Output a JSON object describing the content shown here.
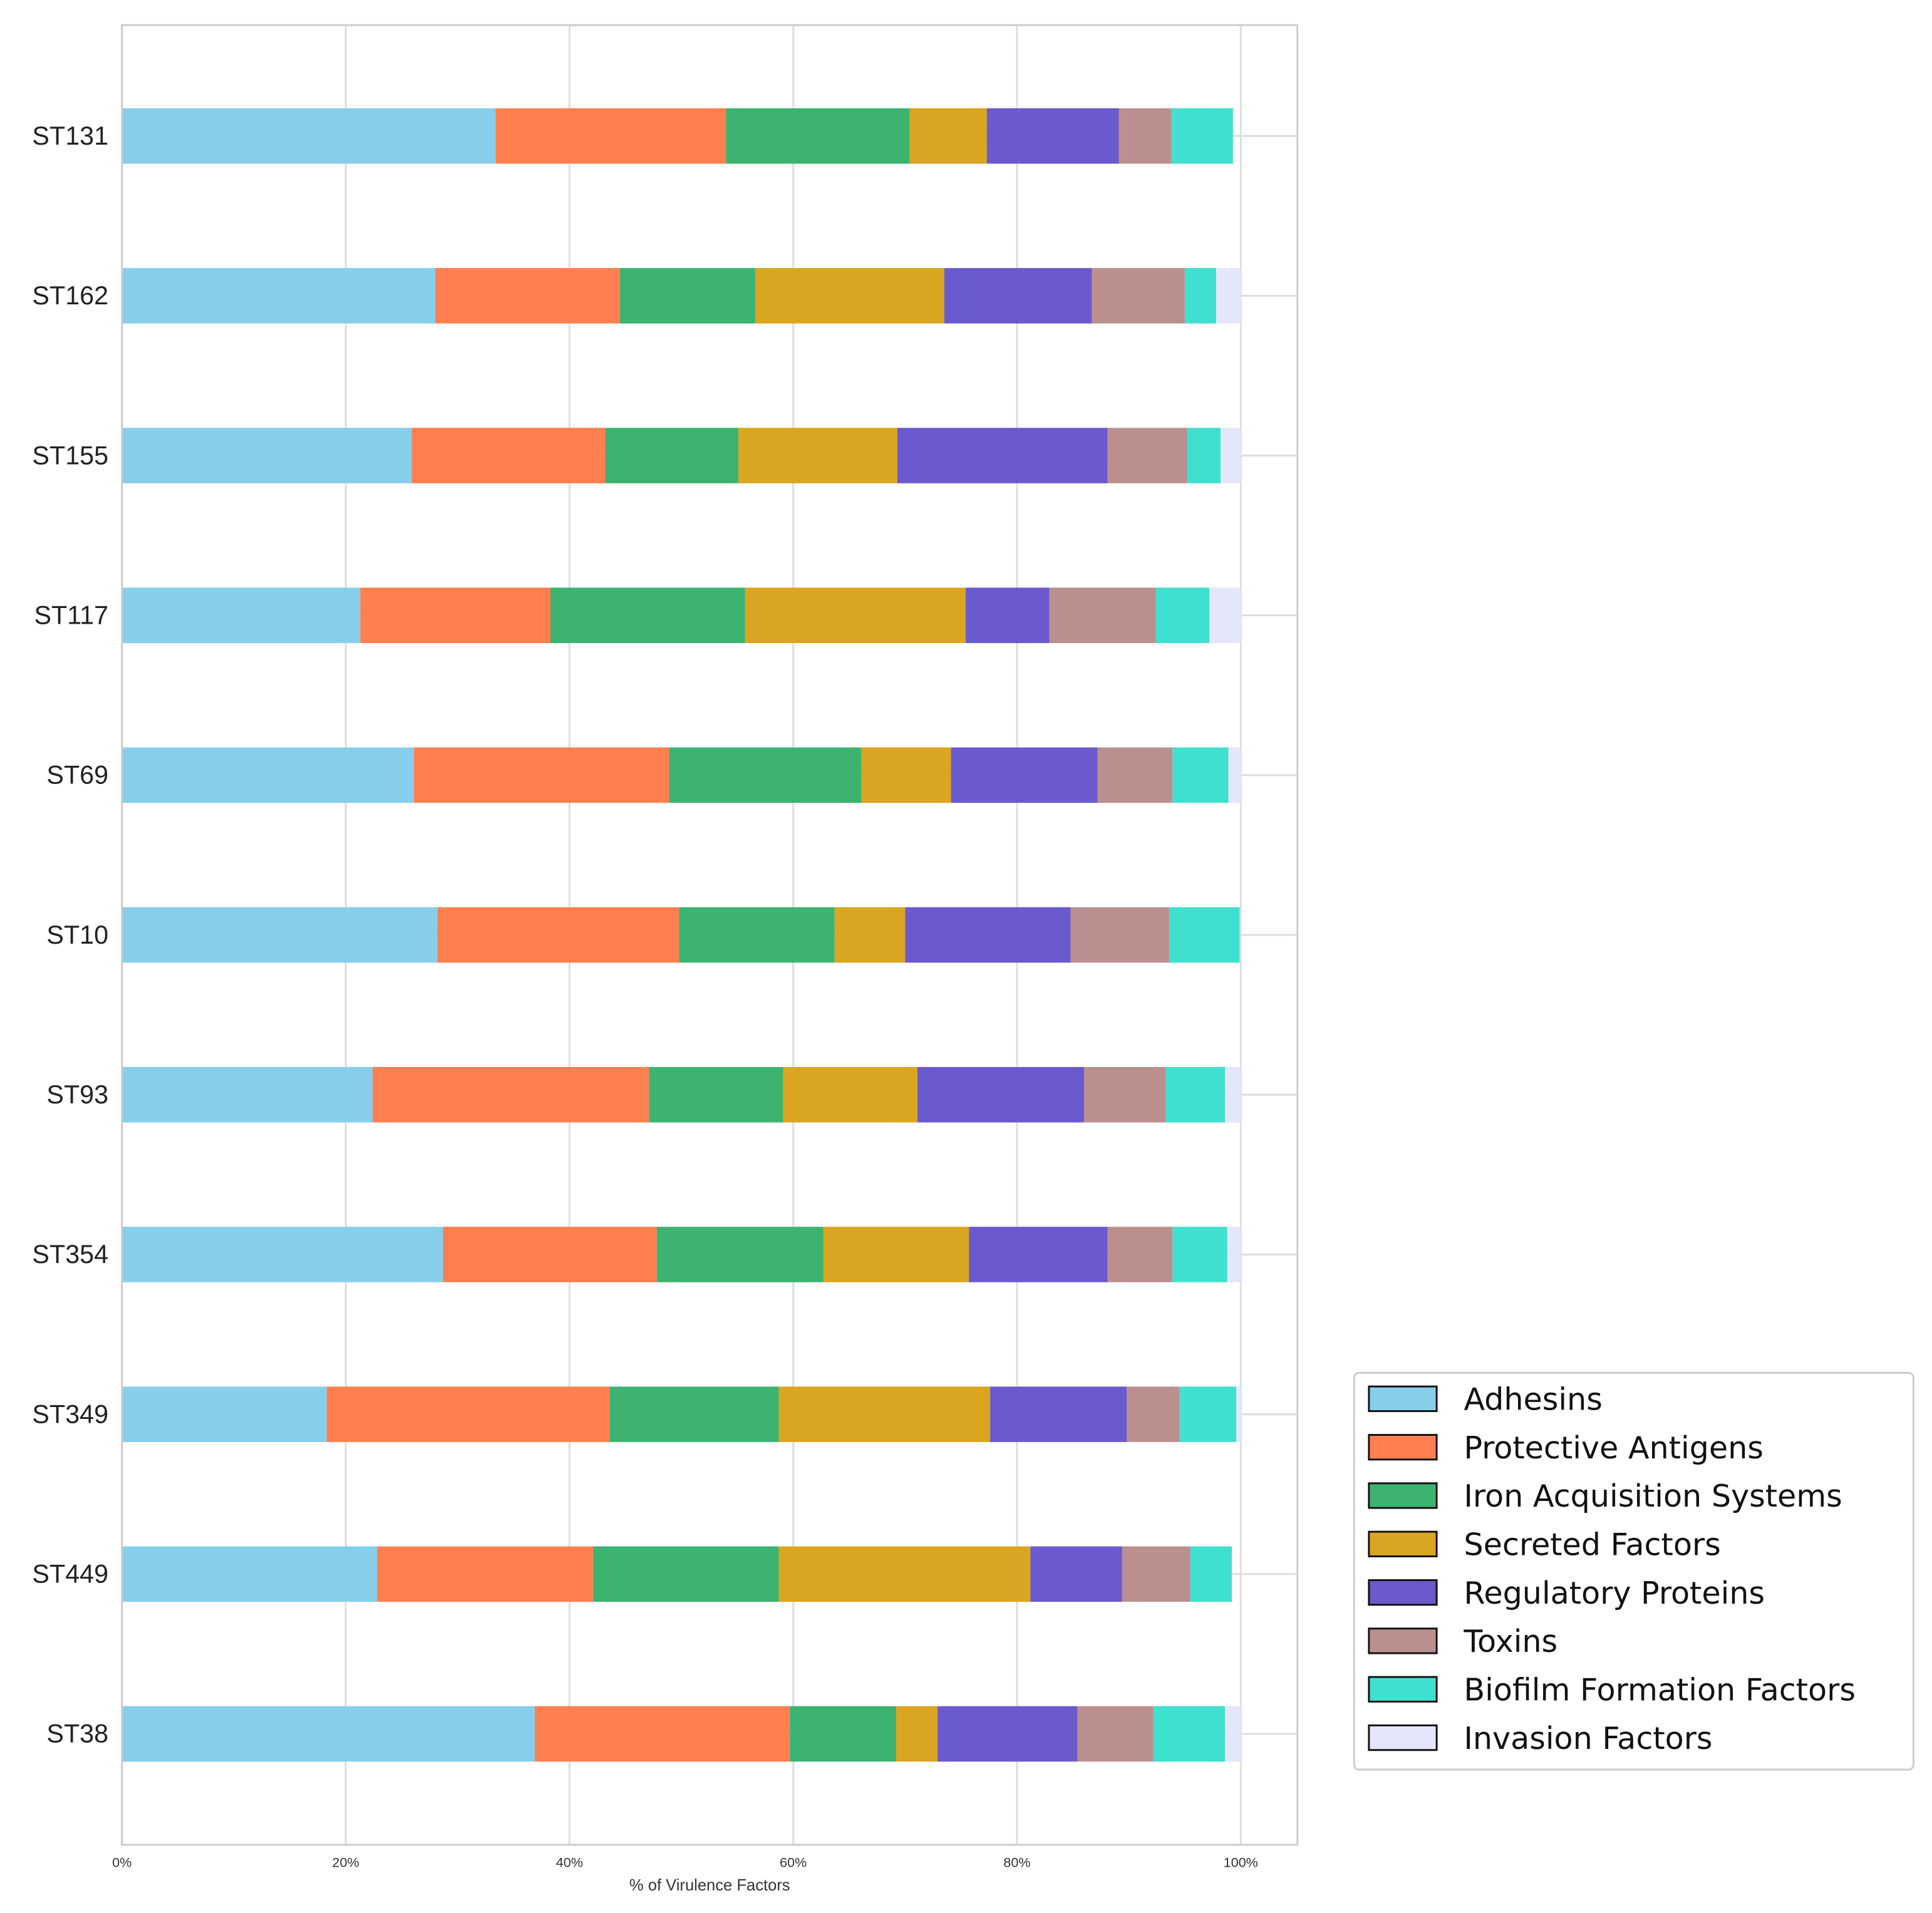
{
  "chart_data": {
    "type": "bar",
    "orientation": "horizontal",
    "stacked": true,
    "title": "",
    "xlabel": "% of Virulence Factors",
    "ylabel": "",
    "xlim": [
      0,
      105
    ],
    "xticks": [
      "0%",
      "20%",
      "40%",
      "60%",
      "80%",
      "100%"
    ],
    "grid": true,
    "legend_position": "bottom-right",
    "categories": [
      "ST131",
      "ST162",
      "ST155",
      "ST117",
      "ST69",
      "ST10",
      "ST93",
      "ST354",
      "ST349",
      "ST449",
      "ST38"
    ],
    "series": [
      {
        "name": "Adhesins",
        "color": "#87CEEB",
        "values": [
          33.4,
          28.0,
          25.9,
          21.3,
          26.1,
          28.2,
          22.4,
          28.7,
          18.3,
          22.8,
          36.9
        ]
      },
      {
        "name": "Protective Antigens",
        "color": "#FF7F50",
        "values": [
          20.6,
          16.5,
          17.3,
          17.0,
          22.8,
          21.6,
          24.7,
          19.1,
          25.3,
          19.3,
          22.8
        ]
      },
      {
        "name": "Iron Acquisition Systems",
        "color": "#3CB371",
        "values": [
          16.4,
          12.1,
          11.9,
          17.4,
          17.2,
          13.9,
          12.0,
          14.9,
          15.1,
          16.6,
          9.5
        ]
      },
      {
        "name": "Secreted Factors",
        "color": "#DAA520",
        "values": [
          6.9,
          16.9,
          14.2,
          19.7,
          8.0,
          6.3,
          12.0,
          13.0,
          18.9,
          22.5,
          3.7
        ]
      },
      {
        "name": "Regulatory Proteins",
        "color": "#6A5ACD",
        "values": [
          11.8,
          13.2,
          18.8,
          7.5,
          13.1,
          14.8,
          14.9,
          12.4,
          12.2,
          8.2,
          12.5
        ]
      },
      {
        "name": "Toxins",
        "color": "#BC8F8F",
        "values": [
          4.7,
          8.3,
          7.1,
          9.5,
          6.7,
          8.8,
          7.3,
          5.8,
          4.7,
          6.1,
          6.8
        ]
      },
      {
        "name": "Biofilm Formation Factors",
        "color": "#40E0D0",
        "values": [
          5.5,
          2.8,
          3.0,
          4.8,
          5.0,
          6.3,
          5.3,
          4.9,
          5.1,
          3.7,
          6.4
        ]
      },
      {
        "name": "Invasion Factors",
        "color": "#E6E6FA",
        "values": [
          0.0,
          2.2,
          1.8,
          2.8,
          1.1,
          0.0,
          1.4,
          1.2,
          0.4,
          0.0,
          1.4
        ]
      }
    ]
  }
}
